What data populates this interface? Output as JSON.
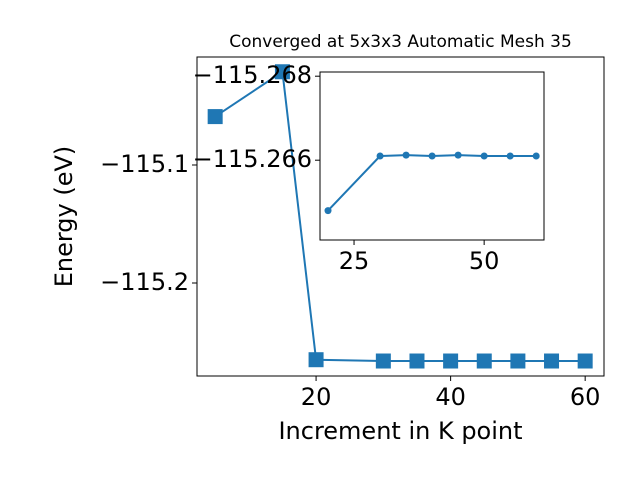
{
  "chart_data": [
    {
      "type": "line",
      "title": "Converged at 5x3x3 Automatic Mesh 35",
      "x_label": "Increment in K point",
      "y_label": "Energy (eV)",
      "x": [
        5,
        15,
        20,
        30,
        35,
        40,
        45,
        50,
        55,
        60
      ],
      "series": [
        {
          "color": "#1f77b4",
          "marker": "square",
          "values": [
            -115.059,
            -115.021,
            -115.265,
            -115.2661,
            -115.2661,
            -115.2661,
            -115.2661,
            -115.2661,
            -115.2661,
            -115.2661
          ]
        }
      ],
      "xlim": [
        2.3,
        62.8
      ],
      "ylim": [
        -115.2788,
        -115.0085
      ],
      "xticks": [
        20,
        40,
        60
      ],
      "yticks": [
        {
          "value": -115.1,
          "label": "−115.1"
        },
        {
          "value": -115.2,
          "label": "−115.2"
        }
      ]
    },
    {
      "type": "line",
      "x": [
        20,
        30,
        35,
        40,
        45,
        50,
        55,
        60
      ],
      "series": [
        {
          "color": "#1f77b4",
          "marker": "circle",
          "values": [
            -115.2648,
            -115.2661,
            -115.26612,
            -115.2661,
            -115.26612,
            -115.2661,
            -115.2661,
            -115.2661
          ]
        }
      ],
      "xlim": [
        18.46,
        61.5
      ],
      "ylim": [
        -115.2641,
        -115.2681
      ],
      "xticks": [
        25,
        50
      ],
      "yticks": [
        {
          "value": -115.268,
          "label": "−115.268"
        },
        {
          "value": -115.266,
          "label": "−115.266"
        }
      ]
    }
  ]
}
